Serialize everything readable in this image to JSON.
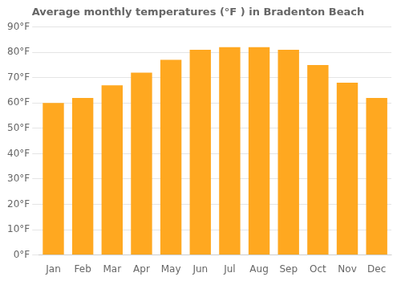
{
  "chart_data": {
    "type": "bar",
    "title": "Average monthly temperatures (°F ) in Bradenton Beach",
    "categories": [
      "Jan",
      "Feb",
      "Mar",
      "Apr",
      "May",
      "Jun",
      "Jul",
      "Aug",
      "Sep",
      "Oct",
      "Nov",
      "Dec"
    ],
    "values": [
      60,
      62,
      67,
      72,
      77,
      81,
      82,
      82,
      81,
      75,
      68,
      62
    ],
    "color": "#FFA820",
    "ylim": [
      0,
      90
    ],
    "yticks": [
      {
        "value": 0,
        "label": "0°F"
      },
      {
        "value": 10,
        "label": "10°F"
      },
      {
        "value": 20,
        "label": "20°F"
      },
      {
        "value": 30,
        "label": "30°F"
      },
      {
        "value": 40,
        "label": "40°F"
      },
      {
        "value": 50,
        "label": "50°F"
      },
      {
        "value": 60,
        "label": "60°F"
      },
      {
        "value": 70,
        "label": "70°F"
      },
      {
        "value": 80,
        "label": "80°F"
      },
      {
        "value": 90,
        "label": "90°F"
      }
    ],
    "grid": true
  }
}
